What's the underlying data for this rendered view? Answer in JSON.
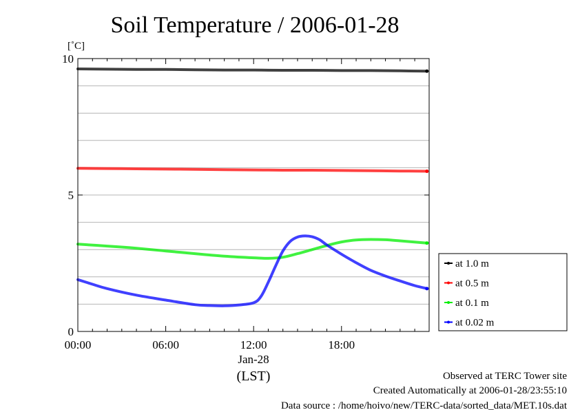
{
  "chart_data": {
    "type": "line",
    "title": "Soil Temperature / 2006-01-28",
    "ylabel": "[˚C]",
    "xlabel": "(LST)",
    "date_label": "Jan-28",
    "ylim": [
      0,
      10
    ],
    "xlim": [
      "00:00",
      "23:59"
    ],
    "y_ticks": [
      {
        "value": 0,
        "label": "0"
      },
      {
        "value": 5,
        "label": "5"
      },
      {
        "value": 10,
        "label": "10"
      }
    ],
    "x_ticks": [
      {
        "value": "00:00",
        "label": "00:00"
      },
      {
        "value": "06:00",
        "label": "06:00"
      },
      {
        "value": "12:00",
        "label": "12:00"
      },
      {
        "value": "18:00",
        "label": "18:00"
      }
    ],
    "grid": true,
    "legend_position": "right",
    "series": [
      {
        "name": "at 1.0 m",
        "color": "#000000",
        "x": [
          "00:00",
          "02:00",
          "04:00",
          "06:00",
          "08:00",
          "10:00",
          "12:00",
          "14:00",
          "16:00",
          "18:00",
          "20:00",
          "22:00",
          "23:50"
        ],
        "y": [
          9.62,
          9.61,
          9.6,
          9.6,
          9.59,
          9.58,
          9.58,
          9.57,
          9.57,
          9.56,
          9.56,
          9.55,
          9.54
        ]
      },
      {
        "name": "at 0.5 m",
        "color": "#ff0000",
        "x": [
          "00:00",
          "02:00",
          "04:00",
          "06:00",
          "08:00",
          "10:00",
          "12:00",
          "14:00",
          "16:00",
          "18:00",
          "20:00",
          "22:00",
          "23:50"
        ],
        "y": [
          5.98,
          5.97,
          5.96,
          5.95,
          5.94,
          5.93,
          5.92,
          5.91,
          5.91,
          5.9,
          5.89,
          5.88,
          5.87
        ]
      },
      {
        "name": "at 0.1 m",
        "color": "#00ee00",
        "x": [
          "00:00",
          "02:00",
          "04:00",
          "06:00",
          "08:00",
          "10:00",
          "12:00",
          "13:00",
          "14:00",
          "15:00",
          "16:00",
          "17:00",
          "18:00",
          "19:00",
          "20:00",
          "21:00",
          "22:00",
          "23:50"
        ],
        "y": [
          3.2,
          3.13,
          3.05,
          2.95,
          2.85,
          2.76,
          2.7,
          2.68,
          2.72,
          2.85,
          3.0,
          3.15,
          3.28,
          3.35,
          3.37,
          3.36,
          3.32,
          3.24
        ]
      },
      {
        "name": "at 0.02 m",
        "color": "#0000ff",
        "x": [
          "00:00",
          "01:00",
          "02:00",
          "04:00",
          "06:00",
          "08:00",
          "09:00",
          "10:00",
          "11:00",
          "12:00",
          "12:30",
          "13:00",
          "13:30",
          "14:00",
          "14:30",
          "15:00",
          "15:30",
          "16:00",
          "16:30",
          "17:00",
          "18:00",
          "19:00",
          "20:00",
          "21:00",
          "22:00",
          "23:00",
          "23:50"
        ],
        "y": [
          1.9,
          1.73,
          1.57,
          1.33,
          1.15,
          0.98,
          0.95,
          0.94,
          0.97,
          1.05,
          1.28,
          1.8,
          2.4,
          2.95,
          3.3,
          3.46,
          3.5,
          3.47,
          3.36,
          3.17,
          2.83,
          2.52,
          2.24,
          2.03,
          1.85,
          1.68,
          1.57
        ]
      }
    ]
  },
  "footer": {
    "observed": "Observed at TERC Tower site",
    "created": "Created Automatically at 2006-01-28/23:55:10",
    "source": "Data source : /home/hoivo/new/TERC-data/sorted_data/MET.10s.dat"
  }
}
